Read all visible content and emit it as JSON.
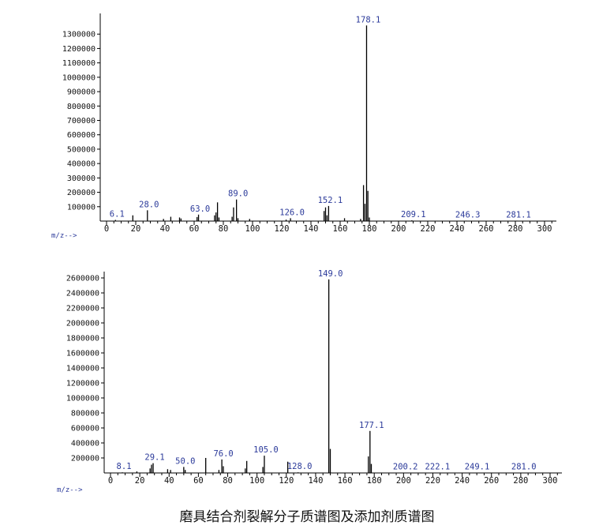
{
  "caption": "磨具结合剂裂解分子质谱图及添加剂质谱图",
  "axis_prompt": "m/z-->",
  "chart_data": [
    {
      "type": "bar",
      "title": "",
      "xlabel": "m/z-->",
      "ylabel": "",
      "xlim": [
        0,
        310
      ],
      "ylim": [
        0,
        1400000
      ],
      "x_ticks": [
        0,
        20,
        40,
        60,
        80,
        100,
        120,
        140,
        160,
        180,
        200,
        220,
        240,
        260,
        280,
        300
      ],
      "y_ticks": [
        100000,
        200000,
        300000,
        400000,
        500000,
        600000,
        700000,
        800000,
        900000,
        1000000,
        1100000,
        1200000,
        1300000
      ],
      "peaks": [
        {
          "x": 6.1,
          "y": 8000,
          "label": "6.1"
        },
        {
          "x": 18.0,
          "y": 40000
        },
        {
          "x": 28.0,
          "y": 75000,
          "label": "28.0"
        },
        {
          "x": 39.0,
          "y": 15000
        },
        {
          "x": 44.0,
          "y": 30000
        },
        {
          "x": 50.0,
          "y": 25000
        },
        {
          "x": 51.0,
          "y": 18000
        },
        {
          "x": 62.0,
          "y": 28000
        },
        {
          "x": 63.0,
          "y": 45000,
          "label": "63.0"
        },
        {
          "x": 74.0,
          "y": 40000
        },
        {
          "x": 75.0,
          "y": 60000
        },
        {
          "x": 76.0,
          "y": 130000
        },
        {
          "x": 77.0,
          "y": 25000
        },
        {
          "x": 86.0,
          "y": 30000
        },
        {
          "x": 87.0,
          "y": 95000
        },
        {
          "x": 89.0,
          "y": 150000,
          "label": "89.0"
        },
        {
          "x": 90.0,
          "y": 20000
        },
        {
          "x": 98.0,
          "y": 15000
        },
        {
          "x": 123.0,
          "y": 10000
        },
        {
          "x": 126.0,
          "y": 20000,
          "label": "126.0"
        },
        {
          "x": 149.0,
          "y": 70000
        },
        {
          "x": 150.0,
          "y": 95000
        },
        {
          "x": 151.0,
          "y": 40000
        },
        {
          "x": 152.1,
          "y": 105000,
          "label": "152.1"
        },
        {
          "x": 163.0,
          "y": 20000
        },
        {
          "x": 174.0,
          "y": 15000
        },
        {
          "x": 176.0,
          "y": 250000
        },
        {
          "x": 177.0,
          "y": 120000
        },
        {
          "x": 178.1,
          "y": 1360000,
          "label": "178.1"
        },
        {
          "x": 179.0,
          "y": 210000
        },
        {
          "x": 180.0,
          "y": 25000
        },
        {
          "x": 209.1,
          "y": 5000,
          "label": "209.1"
        },
        {
          "x": 246.3,
          "y": 3000,
          "label": "246.3"
        },
        {
          "x": 281.1,
          "y": 3000,
          "label": "281.1"
        }
      ]
    },
    {
      "type": "bar",
      "title": "",
      "xlabel": "m/z-->",
      "ylabel": "",
      "xlim": [
        0,
        310
      ],
      "ylim": [
        0,
        2600000
      ],
      "x_ticks": [
        0,
        20,
        40,
        60,
        80,
        100,
        120,
        140,
        160,
        180,
        200,
        220,
        240,
        260,
        280,
        300
      ],
      "y_ticks": [
        200000,
        400000,
        600000,
        800000,
        1000000,
        1200000,
        1400000,
        1600000,
        1800000,
        2000000,
        2200000,
        2400000,
        2600000
      ],
      "peaks": [
        {
          "x": 8.1,
          "y": 8000,
          "label": "8.1"
        },
        {
          "x": 18.0,
          "y": 20000
        },
        {
          "x": 27.0,
          "y": 60000
        },
        {
          "x": 28.0,
          "y": 110000
        },
        {
          "x": 29.1,
          "y": 130000,
          "label": "29.1"
        },
        {
          "x": 39.0,
          "y": 50000
        },
        {
          "x": 41.0,
          "y": 40000
        },
        {
          "x": 50.0,
          "y": 80000,
          "label": "50.0"
        },
        {
          "x": 51.0,
          "y": 40000
        },
        {
          "x": 65.0,
          "y": 200000
        },
        {
          "x": 74.0,
          "y": 40000
        },
        {
          "x": 76.0,
          "y": 180000,
          "label": "76.0"
        },
        {
          "x": 77.0,
          "y": 90000
        },
        {
          "x": 92.0,
          "y": 60000
        },
        {
          "x": 93.0,
          "y": 160000
        },
        {
          "x": 104.0,
          "y": 80000
        },
        {
          "x": 105.0,
          "y": 230000,
          "label": "105.0"
        },
        {
          "x": 121.0,
          "y": 150000
        },
        {
          "x": 128.0,
          "y": 8000,
          "label": "128.0"
        },
        {
          "x": 149.0,
          "y": 2580000,
          "label": "149.0"
        },
        {
          "x": 150.0,
          "y": 320000
        },
        {
          "x": 176.0,
          "y": 220000
        },
        {
          "x": 177.1,
          "y": 560000,
          "label": "177.1"
        },
        {
          "x": 178.0,
          "y": 120000
        },
        {
          "x": 200.2,
          "y": 5000,
          "label": "200.2"
        },
        {
          "x": 222.1,
          "y": 5000,
          "label": "222.1"
        },
        {
          "x": 249.1,
          "y": 3000,
          "label": "249.1"
        },
        {
          "x": 281.0,
          "y": 3000,
          "label": "281.0"
        }
      ]
    }
  ]
}
